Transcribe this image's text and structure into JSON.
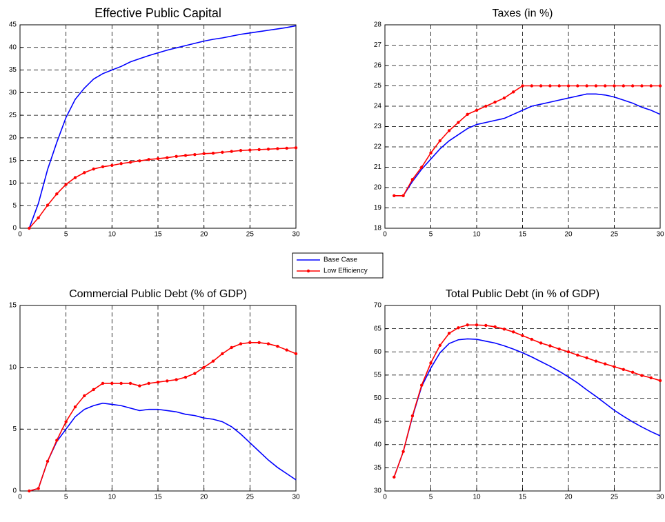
{
  "chart_data": [
    {
      "type": "line",
      "title": "Effective Public Capital",
      "x": [
        1,
        2,
        3,
        4,
        5,
        6,
        7,
        8,
        9,
        10,
        11,
        12,
        13,
        14,
        15,
        16,
        17,
        18,
        19,
        20,
        21,
        22,
        23,
        24,
        25,
        26,
        27,
        28,
        29,
        30
      ],
      "xlim": [
        0,
        30
      ],
      "xticks": [
        0,
        5,
        10,
        15,
        20,
        25,
        30
      ],
      "ylim": [
        0,
        45
      ],
      "yticks": [
        0,
        5,
        10,
        15,
        20,
        25,
        30,
        35,
        40,
        45
      ],
      "grid": true,
      "series": [
        {
          "name": "Base Case",
          "color": "#0000ff",
          "values": [
            0,
            5.5,
            13,
            19,
            24.5,
            28.5,
            31,
            33,
            34.2,
            35,
            35.8,
            36.8,
            37.5,
            38.2,
            38.8,
            39.4,
            39.9,
            40.4,
            40.9,
            41.4,
            41.8,
            42.1,
            42.5,
            42.9,
            43.2,
            43.5,
            43.8,
            44.1,
            44.4,
            44.8
          ]
        },
        {
          "name": "Low Efficiency",
          "color": "#ff0000",
          "marker": "circle",
          "values": [
            0,
            2.3,
            5.1,
            7.6,
            9.7,
            11.2,
            12.3,
            13.1,
            13.6,
            13.9,
            14.3,
            14.6,
            14.9,
            15.2,
            15.4,
            15.6,
            15.9,
            16.1,
            16.3,
            16.5,
            16.6,
            16.8,
            17.0,
            17.2,
            17.3,
            17.4,
            17.5,
            17.6,
            17.7,
            17.8
          ]
        }
      ]
    },
    {
      "type": "line",
      "title": "Taxes (in %)",
      "x": [
        1,
        2,
        3,
        4,
        5,
        6,
        7,
        8,
        9,
        10,
        11,
        12,
        13,
        14,
        15,
        16,
        17,
        18,
        19,
        20,
        21,
        22,
        23,
        24,
        25,
        26,
        27,
        28,
        29,
        30
      ],
      "xlim": [
        0,
        30
      ],
      "xticks": [
        0,
        5,
        10,
        15,
        20,
        25,
        30
      ],
      "ylim": [
        18,
        28
      ],
      "yticks": [
        18,
        19,
        20,
        21,
        22,
        23,
        24,
        25,
        26,
        27,
        28
      ],
      "grid": true,
      "series": [
        {
          "color": "#0000ff",
          "values": [
            19.6,
            19.6,
            20.3,
            20.9,
            21.4,
            21.9,
            22.3,
            22.6,
            22.9,
            23.1,
            23.2,
            23.3,
            23.4,
            23.6,
            23.8,
            24.0,
            24.1,
            24.2,
            24.3,
            24.4,
            24.5,
            24.6,
            24.6,
            24.55,
            24.45,
            24.3,
            24.15,
            23.95,
            23.8,
            23.6
          ]
        },
        {
          "color": "#ff0000",
          "marker": "circle",
          "values": [
            19.6,
            19.6,
            20.4,
            21.0,
            21.7,
            22.3,
            22.8,
            23.2,
            23.6,
            23.8,
            24.0,
            24.2,
            24.4,
            24.7,
            25,
            25,
            25,
            25,
            25,
            25,
            25,
            25,
            25,
            25,
            25,
            25,
            25,
            25,
            25,
            25
          ]
        }
      ]
    },
    {
      "type": "line",
      "title": "Commercial Public Debt (% of GDP)",
      "x": [
        1,
        2,
        3,
        4,
        5,
        6,
        7,
        8,
        9,
        10,
        11,
        12,
        13,
        14,
        15,
        16,
        17,
        18,
        19,
        20,
        21,
        22,
        23,
        24,
        25,
        26,
        27,
        28,
        29,
        30
      ],
      "xlim": [
        0,
        30
      ],
      "xticks": [
        0,
        5,
        10,
        15,
        20,
        25,
        30
      ],
      "ylim": [
        0,
        15
      ],
      "yticks": [
        0,
        5,
        10,
        15
      ],
      "grid": true,
      "series": [
        {
          "color": "#0000ff",
          "values": [
            0,
            0.2,
            2.4,
            4.0,
            5.0,
            6.0,
            6.6,
            6.9,
            7.1,
            7.0,
            6.9,
            6.7,
            6.5,
            6.6,
            6.6,
            6.5,
            6.4,
            6.2,
            6.1,
            5.9,
            5.8,
            5.6,
            5.2,
            4.6,
            3.9,
            3.2,
            2.5,
            1.9,
            1.4,
            0.9
          ]
        },
        {
          "color": "#ff0000",
          "marker": "circle",
          "values": [
            0,
            0.2,
            2.4,
            4.1,
            5.6,
            6.8,
            7.7,
            8.2,
            8.7,
            8.7,
            8.7,
            8.7,
            8.5,
            8.7,
            8.8,
            8.9,
            9.0,
            9.2,
            9.5,
            10.0,
            10.5,
            11.1,
            11.6,
            11.9,
            12.0,
            12.0,
            11.9,
            11.7,
            11.4,
            11.1
          ]
        }
      ]
    },
    {
      "type": "line",
      "title": "Total Public Debt (in % of GDP)",
      "x": [
        1,
        2,
        3,
        4,
        5,
        6,
        7,
        8,
        9,
        10,
        11,
        12,
        13,
        14,
        15,
        16,
        17,
        18,
        19,
        20,
        21,
        22,
        23,
        24,
        25,
        26,
        27,
        28,
        29,
        30
      ],
      "xlim": [
        0,
        30
      ],
      "xticks": [
        0,
        5,
        10,
        15,
        20,
        25,
        30
      ],
      "ylim": [
        30,
        70
      ],
      "yticks": [
        30,
        35,
        40,
        45,
        50,
        55,
        60,
        65,
        70
      ],
      "grid": true,
      "series": [
        {
          "color": "#0000ff",
          "values": [
            33,
            38.5,
            46,
            52.5,
            56.5,
            59.8,
            61.8,
            62.6,
            62.8,
            62.7,
            62.3,
            61.9,
            61.3,
            60.6,
            59.8,
            58.9,
            57.9,
            56.9,
            55.8,
            54.6,
            53.3,
            51.8,
            50.4,
            48.9,
            47.4,
            46.1,
            44.9,
            43.8,
            42.8,
            41.9
          ]
        },
        {
          "color": "#ff0000",
          "marker": "circle",
          "values": [
            33,
            38.5,
            46.2,
            52.8,
            57.6,
            61.4,
            64.0,
            65.2,
            65.8,
            65.8,
            65.7,
            65.4,
            64.9,
            64.3,
            63.5,
            62.7,
            61.9,
            61.3,
            60.6,
            60.0,
            59.3,
            58.7,
            58.0,
            57.4,
            56.8,
            56.2,
            55.6,
            54.9,
            54.4,
            53.8
          ]
        }
      ]
    }
  ]
}
